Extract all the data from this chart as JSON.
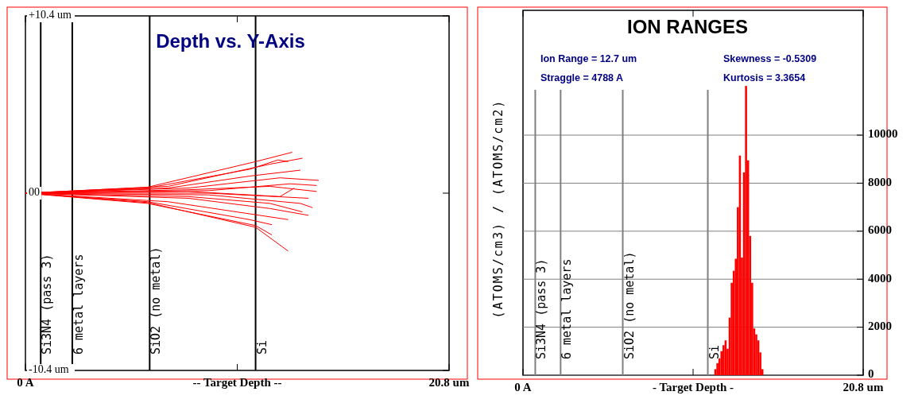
{
  "chart_data": [
    {
      "type": "line",
      "title": "Depth vs. Y-Axis",
      "xlabel": "-- Target Depth --",
      "xlim": [
        0,
        20.8
      ],
      "xticks": [
        {
          "value": 0,
          "label": "0 A"
        },
        {
          "value": 10.4,
          "label": null
        },
        {
          "value": 20.8,
          "label": "20.8 um"
        }
      ],
      "ylim": [
        -10.4,
        10.4
      ],
      "yticks": [
        {
          "value": 10.4,
          "label": "+10.4 um"
        },
        {
          "value": 0,
          "label": "00"
        },
        {
          "value": -10.4,
          "label": "-10.4 um"
        }
      ],
      "grid": false,
      "ref_lines": [
        {
          "axis": "x",
          "value": 0.75,
          "label": "Si3N4 (pass 3)",
          "color": "#000000"
        },
        {
          "axis": "x",
          "value": 2.3,
          "label": "6 metal layers",
          "color": "#000000"
        },
        {
          "axis": "x",
          "value": 6.1,
          "label": "SiO2 (no metal)",
          "color": "#000000"
        },
        {
          "axis": "x",
          "value": 11.3,
          "label": "Si",
          "color": "#000000"
        }
      ],
      "series": [
        {
          "color": "#ff0000",
          "x": [
            0,
            6,
            11.3,
            13.1
          ],
          "values": [
            0,
            0.35,
            1.85,
            2.4
          ]
        },
        {
          "color": "#ff0000",
          "x": [
            0,
            6,
            11,
            12.4,
            12.9
          ],
          "values": [
            0,
            0.3,
            1.4,
            1.95,
            1.85
          ]
        },
        {
          "color": "#ff0000",
          "x": [
            0,
            7,
            12,
            13.6
          ],
          "values": [
            0,
            0.4,
            1.7,
            2.05
          ]
        },
        {
          "color": "#ff0000",
          "x": [
            0,
            7,
            11,
            13.5
          ],
          "values": [
            0,
            0.3,
            1.0,
            1.35
          ]
        },
        {
          "color": "#ff0000",
          "x": [
            0,
            8,
            12.5,
            14.4
          ],
          "values": [
            0,
            0.3,
            0.9,
            0.75
          ]
        },
        {
          "color": "#ff0000",
          "x": [
            0,
            9,
            13,
            14.3
          ],
          "values": [
            0,
            0.15,
            0.55,
            0.45
          ]
        },
        {
          "color": "#ff0000",
          "x": [
            0,
            8,
            12,
            14.3
          ],
          "values": [
            0,
            0.2,
            0.4,
            0.1
          ]
        },
        {
          "color": "#ff0000",
          "x": [
            0,
            8,
            12.5,
            13.2
          ],
          "values": [
            0,
            0.1,
            -0.2,
            0.3
          ]
        },
        {
          "color": "#ff0000",
          "x": [
            0,
            9,
            13.9
          ],
          "values": [
            0,
            0,
            -0.3
          ]
        },
        {
          "color": "#ff0000",
          "x": [
            0,
            9,
            13.5,
            14.1
          ],
          "values": [
            0,
            -0.1,
            -0.6,
            -0.85
          ]
        },
        {
          "color": "#ff0000",
          "x": [
            0,
            8,
            12,
            13.6
          ],
          "values": [
            0,
            -0.2,
            -0.6,
            -1.1
          ]
        },
        {
          "color": "#ff0000",
          "x": [
            0,
            8,
            12,
            13.9
          ],
          "values": [
            0,
            -0.3,
            -0.9,
            -1.3
          ]
        },
        {
          "color": "#ff0000",
          "x": [
            0,
            7,
            11.5,
            12.9
          ],
          "values": [
            0,
            -0.5,
            -1.3,
            -1.55
          ]
        },
        {
          "color": "#ff0000",
          "x": [
            0,
            6,
            11,
            12.1
          ],
          "values": [
            0,
            -0.5,
            -1.55,
            -1.85
          ]
        },
        {
          "color": "#ff0000",
          "x": [
            0,
            6,
            11.3,
            12.1
          ],
          "values": [
            0,
            -0.6,
            -1.9,
            -2.45
          ]
        },
        {
          "color": "#ff0000",
          "x": [
            0,
            6,
            11.3,
            12.9
          ],
          "values": [
            0,
            -0.55,
            -2.0,
            -3.4
          ]
        }
      ]
    },
    {
      "type": "histogram",
      "title": "ION RANGES",
      "xlabel": "- Target Depth -",
      "ylabel": "(ATOMS/cm3) / (ATOMS/cm2)",
      "annotations": [
        "Ion Range = 12.7 um",
        "Skewness = -0.5309",
        "Straggle = 4788 A",
        "Kurtosis = 3.3654"
      ],
      "xlim": [
        0,
        20.8
      ],
      "xticks": [
        {
          "value": 0,
          "label": "0 A"
        },
        {
          "value": 10.4,
          "label": null
        },
        {
          "value": 20.8,
          "label": "20.8 um"
        }
      ],
      "ylim": [
        0,
        15200
      ],
      "yticks": [
        0,
        2000,
        4000,
        6000,
        8000,
        10000
      ],
      "grid": "y",
      "ref_lines": [
        {
          "axis": "x",
          "value": 0.75,
          "label": "Si3N4 (pass 3)",
          "color": "#808080"
        },
        {
          "axis": "x",
          "value": 2.3,
          "label": "6 metal layers",
          "color": "#808080"
        },
        {
          "axis": "x",
          "value": 6.1,
          "label": "SiO2 (no metal)",
          "color": "#808080"
        },
        {
          "axis": "x",
          "value": 11.3,
          "label": "Si",
          "color": "#808080"
        }
      ],
      "color": "#ff0000",
      "bins": [
        11.7,
        11.825,
        11.95,
        12.075,
        12.2,
        12.325,
        12.45,
        12.575,
        12.7,
        12.825,
        12.95,
        13.075,
        13.2,
        13.325,
        13.45,
        13.575,
        13.7,
        13.825,
        13.95,
        14.075,
        14.2,
        14.325,
        14.45,
        14.575,
        14.7
      ],
      "values": [
        250,
        500,
        700,
        1000,
        1250,
        1450,
        1100,
        2400,
        3850,
        4350,
        4850,
        7000,
        9150,
        4900,
        8450,
        12050,
        8950,
        5800,
        3850,
        1950,
        1700,
        1450,
        950,
        250
      ]
    }
  ]
}
